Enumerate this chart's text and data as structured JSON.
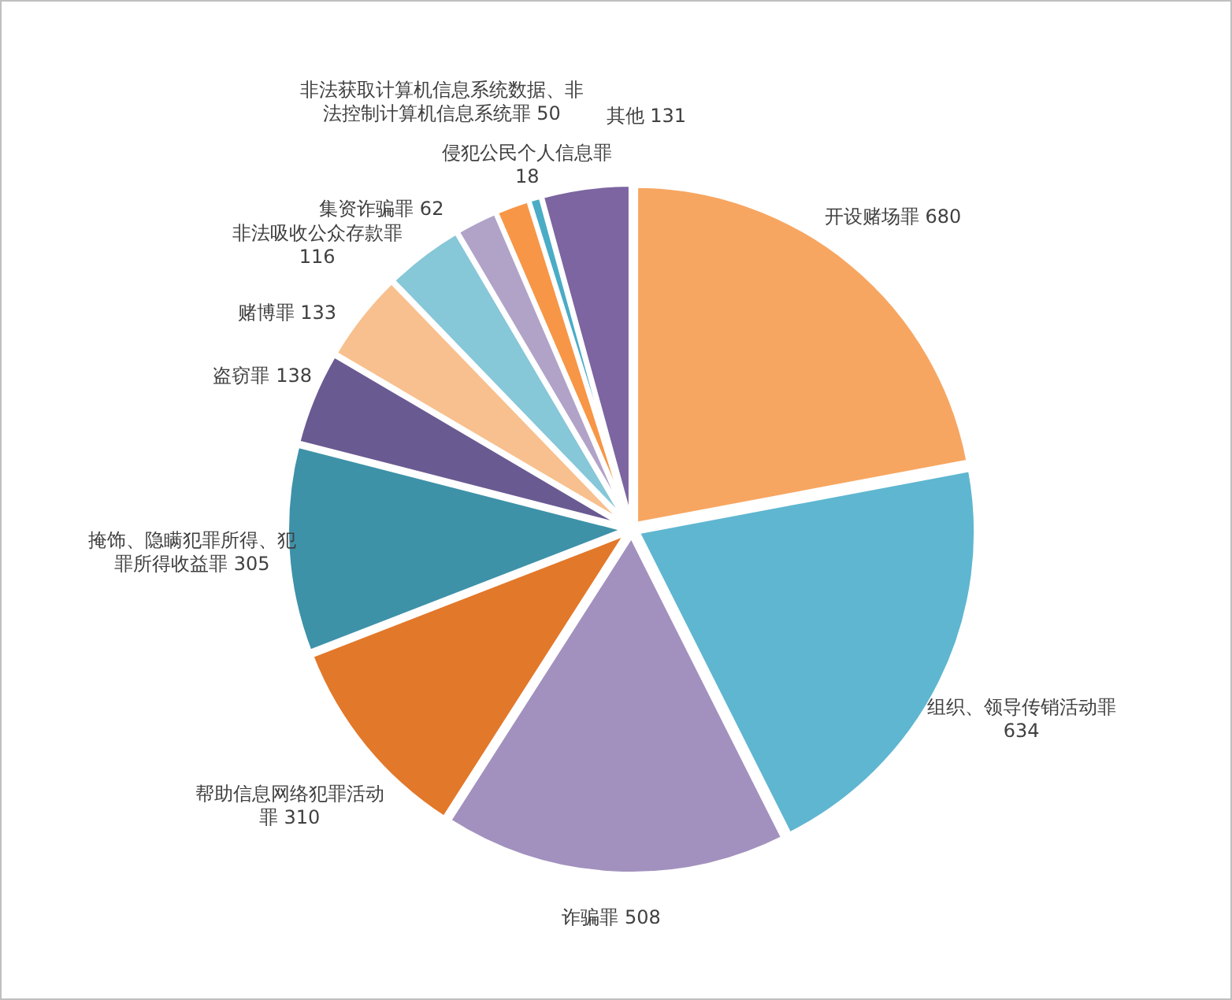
{
  "chart_data": {
    "type": "pie",
    "data_labels": true,
    "categories": [
      "开设赌场罪",
      "组织、领导传销活动罪",
      "诈骗罪",
      "帮助信息网络犯罪活动罪",
      "掩饰、隐瞒犯罪所得、犯罪所得收益罪",
      "盗窃罪",
      "赌博罪",
      "非法吸收公众存款罪",
      "集资诈骗罪",
      "非法获取计算机信息系统数据、非法控制计算机信息系统罪",
      "侵犯公民个人信息罪",
      "其他"
    ],
    "values": [
      680,
      634,
      508,
      310,
      305,
      138,
      133,
      116,
      62,
      50,
      18,
      131
    ],
    "colors": [
      "#f7a661",
      "#5fb6d0",
      "#a291be",
      "#e2782a",
      "#3d92a8",
      "#6a5a92",
      "#f8c08e",
      "#86c7d8",
      "#b1a3c8",
      "#f79646",
      "#4bacc6",
      "#7c65a0"
    ]
  }
}
